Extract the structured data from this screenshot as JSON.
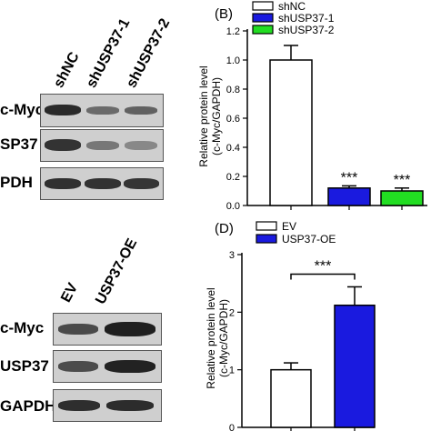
{
  "panel_a_blot": {
    "lanes": [
      "shNC",
      "shUSP37-1",
      "shUSP37-2"
    ],
    "rows": [
      "c-Myc",
      "SP37",
      "PDH"
    ]
  },
  "panel_c_blot": {
    "lanes": [
      "EV",
      "USP37-OE"
    ],
    "rows": [
      "c-Myc",
      "USP37",
      "GAPDH"
    ]
  },
  "chart_data": [
    {
      "type": "bar",
      "panel_label": "(B)",
      "categories": [
        "shNC",
        "shUSP37-1",
        "shUSP37-2"
      ],
      "values": [
        1.0,
        0.12,
        0.1
      ],
      "errors": [
        0.1,
        0.015,
        0.02
      ],
      "significance": [
        "",
        "***",
        "***"
      ],
      "legend": [
        "shNC",
        "shUSP37-1",
        "shUSP37-2"
      ],
      "colors": [
        "#ffffff",
        "#1a1adf",
        "#22dd22"
      ],
      "ylabel": "Relative protein level\n(c-Myc/GAPDH)",
      "ylim": [
        0,
        1.2
      ],
      "yticks": [
        "0.0",
        "0.2",
        "0.4",
        "0.6",
        "0.8",
        "1.0",
        "1.2"
      ]
    },
    {
      "type": "bar",
      "panel_label": "(D)",
      "categories": [
        "EV",
        "USP37-OE"
      ],
      "values": [
        1.0,
        2.12
      ],
      "errors": [
        0.12,
        0.32
      ],
      "significance": "***",
      "legend": [
        "EV",
        "USP37-OE"
      ],
      "colors": [
        "#ffffff",
        "#1a1adf"
      ],
      "ylabel": "Relative protein level\n(c-Myc/GAPDH)",
      "ylim": [
        0,
        3
      ],
      "yticks": [
        "0",
        "1",
        "2",
        "3"
      ]
    }
  ]
}
